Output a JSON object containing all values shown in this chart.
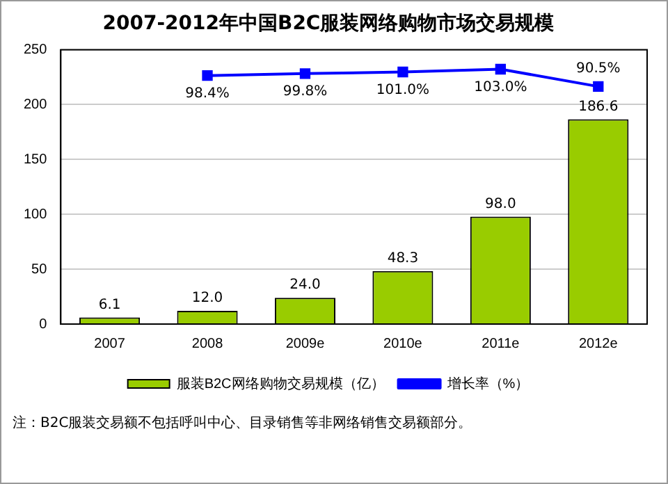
{
  "chart_data": {
    "type": "bar",
    "title": "2007-2012年中国B2C服装网络购物市场交易规模",
    "categories": [
      "2007",
      "2008",
      "2009e",
      "2010e",
      "2011e",
      "2012e"
    ],
    "series": [
      {
        "name": "服装B2C网络购物交易规模（亿）",
        "color": "#99cc00",
        "values": [
          6.1,
          12.0,
          24.0,
          48.3,
          98.0,
          186.6
        ],
        "value_labels": [
          "6.1",
          "12.0",
          "24.0",
          "48.3",
          "98.0",
          "186.6"
        ]
      },
      {
        "name": "增长率（%）",
        "type": "line",
        "axis": "y2",
        "color": "#0000ff",
        "values": [
          null,
          98.4,
          99.8,
          101.0,
          103.0,
          90.5
        ],
        "value_labels": [
          null,
          "98.4%",
          "99.8%",
          "101.0%",
          "103.0%",
          "90.5%"
        ]
      }
    ],
    "ylim": [
      0,
      250
    ],
    "yticks": [
      0,
      50,
      100,
      150,
      200,
      250
    ],
    "y2lim": [
      -81,
      117
    ],
    "grid": "y",
    "legend": "bottom",
    "marker": "square",
    "line_style": "solid",
    "annotations": [
      "注：B2C服装交易额不包括呼叫中心、目录销售等非网络销售交易额部分。"
    ]
  }
}
